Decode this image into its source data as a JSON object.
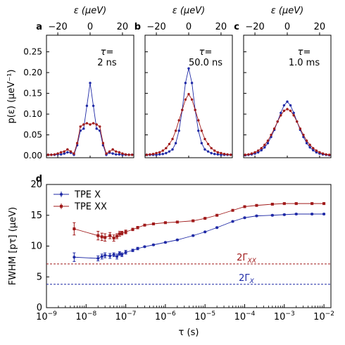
{
  "chart_data": [
    {
      "type": "line",
      "panel_label": "a",
      "annotation_line1": "τ=",
      "annotation_line2": "2 ns",
      "ylabel": "p(ε) (μeV⁻¹)",
      "xlabel_top": "ε (μeV)",
      "xlim": [
        -27,
        27
      ],
      "ylim": [
        -0.005,
        0.29
      ],
      "xticks": [
        -20,
        0,
        20
      ],
      "xtick_labels": [
        "−20",
        "0",
        "20"
      ],
      "yticks": [
        0.0,
        0.05,
        0.1,
        0.15,
        0.2,
        0.25
      ],
      "ytick_labels": [
        "0.00",
        "0.05",
        "0.10",
        "0.15",
        "0.20",
        "0.25"
      ],
      "series": [
        {
          "color": "#1f2aa6",
          "x": [
            -26,
            -24,
            -22,
            -20,
            -18,
            -16,
            -14,
            -12,
            -10,
            -8,
            -6,
            -4,
            -2,
            0,
            2,
            4,
            6,
            8,
            10,
            12,
            14,
            16,
            18,
            20,
            22,
            24,
            26
          ],
          "values": [
            0.002,
            0.002,
            0.002,
            0.003,
            0.003,
            0.005,
            0.008,
            0.007,
            0.002,
            0.025,
            0.06,
            0.065,
            0.12,
            0.175,
            0.12,
            0.065,
            0.06,
            0.025,
            0.002,
            0.007,
            0.005,
            0.003,
            0.003,
            0.002,
            0.002,
            0.002,
            0.002
          ]
        },
        {
          "color": "#a01a1a",
          "x": [
            -26,
            -24,
            -22,
            -20,
            -18,
            -16,
            -14,
            -12,
            -10,
            -8,
            -6,
            -4,
            -2,
            0,
            2,
            4,
            6,
            8,
            10,
            12,
            14,
            16,
            18,
            20,
            22,
            24,
            26
          ],
          "values": [
            0.002,
            0.002,
            0.003,
            0.005,
            0.008,
            0.01,
            0.015,
            0.01,
            0.005,
            0.03,
            0.07,
            0.075,
            0.078,
            0.075,
            0.078,
            0.075,
            0.07,
            0.03,
            0.005,
            0.01,
            0.015,
            0.01,
            0.008,
            0.005,
            0.003,
            0.002,
            0.002
          ]
        }
      ]
    },
    {
      "type": "line",
      "panel_label": "b",
      "annotation_line1": "τ=",
      "annotation_line2": "50.0 ns",
      "xlabel_top": "ε (μeV)",
      "xlim": [
        -27,
        27
      ],
      "ylim": [
        -0.005,
        0.29
      ],
      "xticks": [
        -20,
        0,
        20
      ],
      "xtick_labels": [
        "−20",
        "0",
        "20"
      ],
      "series": [
        {
          "color": "#1f2aa6",
          "x": [
            -26,
            -24,
            -22,
            -20,
            -18,
            -16,
            -14,
            -12,
            -10,
            -8,
            -6,
            -4,
            -2,
            0,
            2,
            4,
            6,
            8,
            10,
            12,
            14,
            16,
            18,
            20,
            22,
            24,
            26
          ],
          "values": [
            0.002,
            0.002,
            0.002,
            0.002,
            0.003,
            0.004,
            0.006,
            0.01,
            0.015,
            0.03,
            0.06,
            0.11,
            0.175,
            0.21,
            0.175,
            0.11,
            0.06,
            0.03,
            0.015,
            0.01,
            0.006,
            0.004,
            0.003,
            0.002,
            0.002,
            0.002,
            0.002
          ]
        },
        {
          "color": "#a01a1a",
          "x": [
            -26,
            -24,
            -22,
            -20,
            -18,
            -16,
            -14,
            -12,
            -10,
            -8,
            -6,
            -4,
            -2,
            0,
            2,
            4,
            6,
            8,
            10,
            12,
            14,
            16,
            18,
            20,
            22,
            24,
            26
          ],
          "values": [
            0.002,
            0.003,
            0.004,
            0.006,
            0.008,
            0.012,
            0.018,
            0.028,
            0.04,
            0.06,
            0.085,
            0.11,
            0.135,
            0.148,
            0.135,
            0.11,
            0.085,
            0.06,
            0.04,
            0.028,
            0.018,
            0.012,
            0.008,
            0.006,
            0.004,
            0.003,
            0.002
          ]
        }
      ]
    },
    {
      "type": "line",
      "panel_label": "c",
      "annotation_line1": "τ=",
      "annotation_line2": "1.0 ms",
      "xlabel_top": "ε (μeV)",
      "xlim": [
        -27,
        27
      ],
      "ylim": [
        -0.005,
        0.29
      ],
      "xticks": [
        -20,
        0,
        20
      ],
      "xtick_labels": [
        "−20",
        "0",
        "20"
      ],
      "series": [
        {
          "color": "#1f2aa6",
          "x": [
            -26,
            -24,
            -22,
            -20,
            -18,
            -16,
            -14,
            -12,
            -10,
            -8,
            -6,
            -4,
            -2,
            0,
            2,
            4,
            6,
            8,
            10,
            12,
            14,
            16,
            18,
            20,
            22,
            24,
            26
          ],
          "values": [
            0.001,
            0.002,
            0.003,
            0.005,
            0.008,
            0.013,
            0.02,
            0.03,
            0.045,
            0.062,
            0.082,
            0.103,
            0.121,
            0.13,
            0.121,
            0.103,
            0.082,
            0.062,
            0.045,
            0.03,
            0.02,
            0.013,
            0.008,
            0.005,
            0.003,
            0.002,
            0.001
          ]
        },
        {
          "color": "#a01a1a",
          "x": [
            -26,
            -24,
            -22,
            -20,
            -18,
            -16,
            -14,
            -12,
            -10,
            -8,
            -6,
            -4,
            -2,
            0,
            2,
            4,
            6,
            8,
            10,
            12,
            14,
            16,
            18,
            20,
            22,
            24,
            26
          ],
          "values": [
            0.002,
            0.003,
            0.005,
            0.008,
            0.012,
            0.018,
            0.026,
            0.036,
            0.05,
            0.065,
            0.082,
            0.097,
            0.108,
            0.112,
            0.108,
            0.097,
            0.082,
            0.065,
            0.05,
            0.036,
            0.026,
            0.018,
            0.012,
            0.008,
            0.005,
            0.003,
            0.002
          ]
        }
      ]
    },
    {
      "type": "scatter",
      "panel_label": "d",
      "xlabel": "τ (s)",
      "ylabel": "FWHM [pτ] (μeV)",
      "x_scale": "log",
      "xlim": [
        1e-09,
        0.015
      ],
      "ylim": [
        0,
        20
      ],
      "xticks": [
        1e-09,
        1e-08,
        1e-07,
        1e-06,
        1e-05,
        0.0001,
        0.001,
        0.01
      ],
      "xtick_labels": [
        "10",
        "10",
        "10",
        "10",
        "10",
        "10",
        "10",
        "10"
      ],
      "xtick_exponents": [
        "−9",
        "−8",
        "−7",
        "−6",
        "−5",
        "−4",
        "−3",
        "−2"
      ],
      "yticks": [
        0,
        5,
        10,
        15,
        20
      ],
      "ytick_labels": [
        "0",
        "5",
        "10",
        "15",
        "20"
      ],
      "legend_position": "top-left",
      "hlines": [
        {
          "y": 7.1,
          "color": "#a01a1a",
          "label_main": "2Γ",
          "label_sub": "XX"
        },
        {
          "y": 3.8,
          "color": "#1f2aa6",
          "label_main": "2Γ",
          "label_sub": "X"
        }
      ],
      "series": [
        {
          "name": "TPE X",
          "color": "#1f2aa6",
          "marker": "circle",
          "x": [
            5e-09,
            2e-08,
            2.5e-08,
            3e-08,
            4e-08,
            5e-08,
            6e-08,
            7e-08,
            8e-08,
            1e-07,
            1.5e-07,
            2e-07,
            3e-07,
            5e-07,
            1e-06,
            2e-06,
            5e-06,
            1e-05,
            2e-05,
            5e-05,
            0.0001,
            0.0002,
            0.0005,
            0.001,
            0.002,
            0.005,
            0.01
          ],
          "values": [
            8.2,
            8.0,
            8.3,
            8.5,
            8.4,
            8.6,
            8.3,
            8.8,
            8.6,
            9.0,
            9.3,
            9.6,
            9.9,
            10.2,
            10.6,
            11.0,
            11.7,
            12.3,
            13.0,
            14.0,
            14.6,
            14.9,
            15.0,
            15.1,
            15.2,
            15.2,
            15.2
          ],
          "errors": [
            0.7,
            0.4,
            0.4,
            0.4,
            0.4,
            0.3,
            0.4,
            0.3,
            0.3,
            0.3,
            0.2,
            0.2,
            0.1,
            0.1,
            0.1,
            0.1,
            0.1,
            0.1,
            0.1,
            0.1,
            0.1,
            0.1,
            0.1,
            0.1,
            0.1,
            0.1,
            0.1
          ]
        },
        {
          "name": "TPE XX",
          "color": "#a01a1a",
          "marker": "square",
          "x": [
            5e-09,
            2e-08,
            2.5e-08,
            3e-08,
            4e-08,
            5e-08,
            6e-08,
            7e-08,
            8e-08,
            1e-07,
            1.5e-07,
            2e-07,
            3e-07,
            5e-07,
            1e-06,
            2e-06,
            5e-06,
            1e-05,
            2e-05,
            5e-05,
            0.0001,
            0.0002,
            0.0005,
            0.001,
            0.002,
            0.005,
            0.01
          ],
          "values": [
            12.8,
            11.7,
            11.5,
            11.4,
            11.7,
            11.3,
            11.6,
            12.0,
            12.1,
            12.3,
            12.7,
            13.0,
            13.4,
            13.6,
            13.8,
            13.9,
            14.1,
            14.5,
            15.0,
            15.8,
            16.4,
            16.6,
            16.8,
            16.9,
            16.9,
            16.9,
            16.9
          ],
          "errors": [
            1.0,
            0.7,
            0.6,
            0.6,
            0.5,
            0.5,
            0.4,
            0.4,
            0.3,
            0.3,
            0.2,
            0.2,
            0.1,
            0.1,
            0.1,
            0.1,
            0.1,
            0.1,
            0.1,
            0.1,
            0.1,
            0.1,
            0.1,
            0.1,
            0.1,
            0.1,
            0.1
          ]
        }
      ]
    }
  ]
}
